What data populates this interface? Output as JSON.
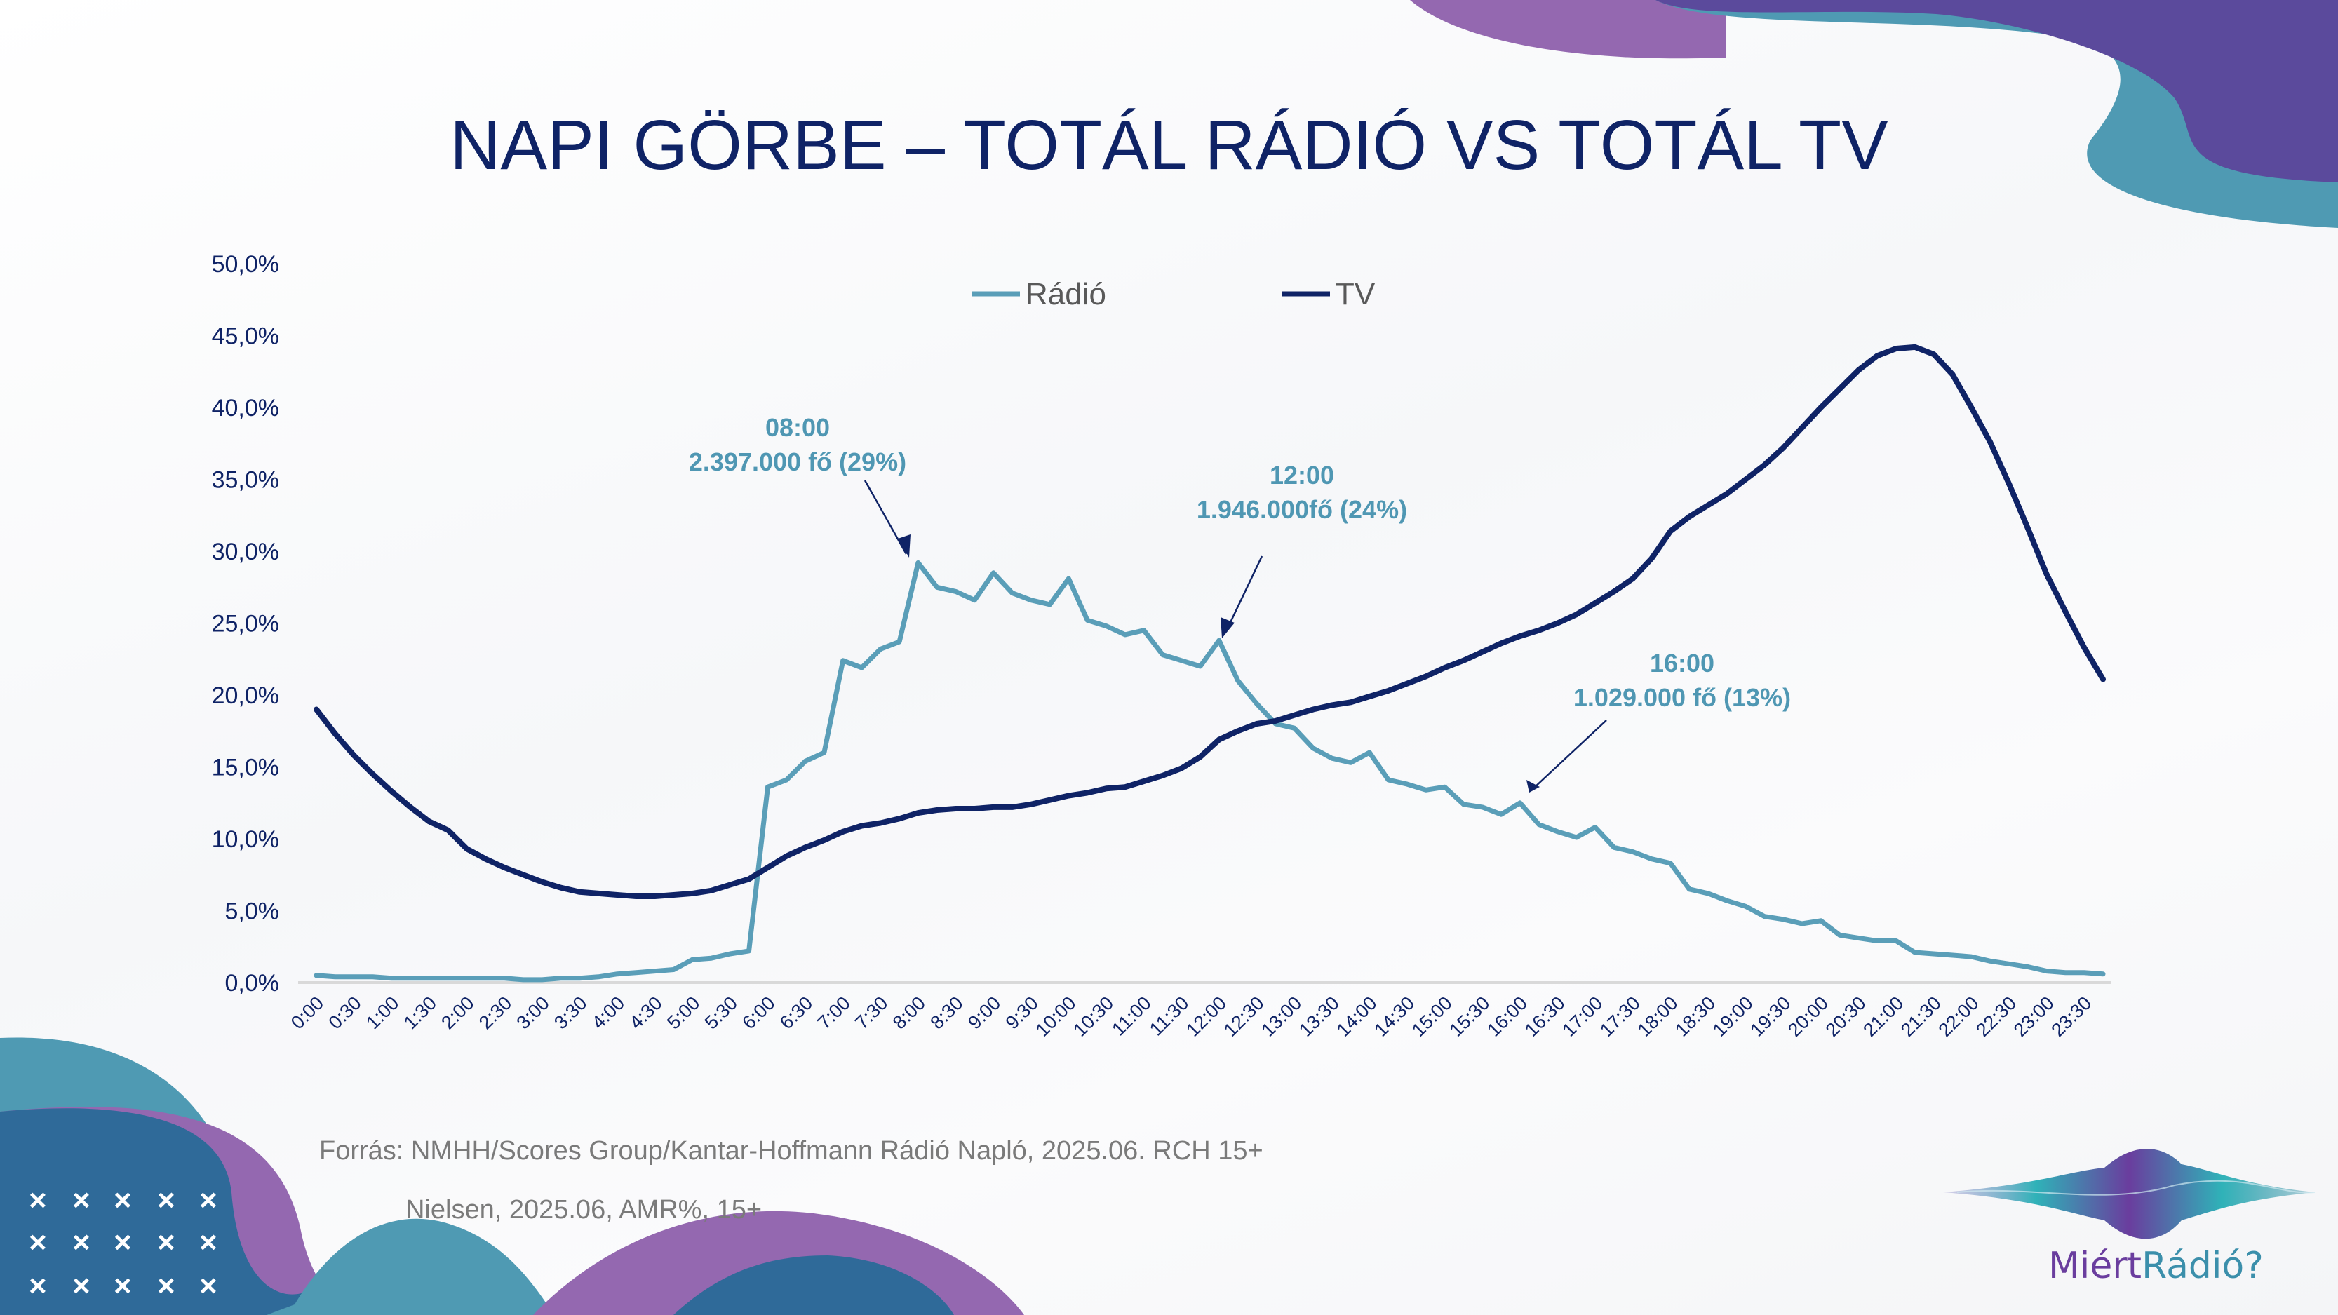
{
  "slide": {
    "title": "NAPI GÖRBE – TOTÁL RÁDIÓ VS TOTÁL TV",
    "source_line1": "Forrás: NMHH/Scores Group/Kantar-Hoffmann Rádió Napló, 2025.06. RCH 15+",
    "source_line2": "Nielsen, 2025.06, AMR%, 15+",
    "logo_part1": "Miért",
    "logo_part2": "Rádió?",
    "decor_mark": "×"
  },
  "colors": {
    "radio": "#5a9eb8",
    "tv": "#0f2366",
    "annotation": "#4f97b3",
    "purple": "#9468b0",
    "teal": "#4f9ab3",
    "blue": "#2f6a99"
  },
  "chart_data": {
    "type": "line",
    "title": "NAPI GÖRBE – TOTÁL RÁDIÓ VS TOTÁL TV",
    "xlabel": "",
    "ylabel": "",
    "ylim": [
      0,
      50
    ],
    "yticks": [
      "0,0%",
      "5,0%",
      "10,0%",
      "15,0%",
      "20,0%",
      "25,0%",
      "30,0%",
      "35,0%",
      "40,0%",
      "45,0%",
      "50,0%"
    ],
    "legend_position": "top-center",
    "x_interval_minutes": 15,
    "xtick_labels": [
      "0:00",
      "0:30",
      "1:00",
      "1:30",
      "2:00",
      "2:30",
      "3:00",
      "3:30",
      "4:00",
      "4:30",
      "5:00",
      "5:30",
      "6:00",
      "6:30",
      "7:00",
      "7:30",
      "8:00",
      "8:30",
      "9:00",
      "9:30",
      "10:00",
      "10:30",
      "11:00",
      "11:30",
      "12:00",
      "12:30",
      "13:00",
      "13:30",
      "14:00",
      "14:30",
      "15:00",
      "15:30",
      "16:00",
      "16:30",
      "17:00",
      "17:30",
      "18:00",
      "18:30",
      "19:00",
      "19:30",
      "20:00",
      "20:30",
      "21:00",
      "21:30",
      "22:00",
      "22:30",
      "23:00",
      "23:30"
    ],
    "series": [
      {
        "name": "Rádió",
        "values": [
          0.5,
          0.4,
          0.4,
          0.4,
          0.3,
          0.3,
          0.3,
          0.3,
          0.3,
          0.3,
          0.3,
          0.2,
          0.2,
          0.3,
          0.3,
          0.4,
          0.6,
          0.7,
          0.8,
          0.9,
          1.6,
          1.7,
          2.0,
          2.2,
          13.6,
          14.1,
          15.4,
          16.0,
          22.4,
          21.9,
          23.2,
          23.7,
          29.2,
          27.5,
          27.2,
          26.6,
          28.5,
          27.1,
          26.6,
          26.3,
          28.1,
          25.2,
          24.8,
          24.2,
          24.5,
          22.8,
          22.4,
          22.0,
          23.8,
          21.0,
          19.4,
          18.0,
          17.7,
          16.3,
          15.6,
          15.3,
          16.0,
          14.1,
          13.8,
          13.4,
          13.6,
          12.4,
          12.2,
          11.7,
          12.5,
          11.0,
          10.5,
          10.1,
          10.8,
          9.4,
          9.1,
          8.6,
          8.3,
          6.5,
          6.2,
          5.7,
          5.3,
          4.6,
          4.4,
          4.1,
          4.3,
          3.3,
          3.1,
          2.9,
          2.9,
          2.1,
          2.0,
          1.9,
          1.8,
          1.5,
          1.3,
          1.1,
          0.8,
          0.7,
          0.7,
          0.6
        ]
      },
      {
        "name": "TV",
        "values": [
          19.0,
          17.3,
          15.8,
          14.5,
          13.3,
          12.2,
          11.2,
          10.6,
          9.3,
          8.6,
          8.0,
          7.5,
          7.0,
          6.6,
          6.3,
          6.2,
          6.1,
          6.0,
          6.0,
          6.1,
          6.2,
          6.4,
          6.8,
          7.2,
          8.0,
          8.8,
          9.4,
          9.9,
          10.5,
          10.9,
          11.1,
          11.4,
          11.8,
          12.0,
          12.1,
          12.1,
          12.2,
          12.2,
          12.4,
          12.7,
          13.0,
          13.2,
          13.5,
          13.6,
          14.0,
          14.4,
          14.9,
          15.7,
          16.9,
          17.5,
          18.0,
          18.2,
          18.6,
          19.0,
          19.3,
          19.5,
          19.9,
          20.3,
          20.8,
          21.3,
          21.9,
          22.4,
          23.0,
          23.6,
          24.1,
          24.5,
          25.0,
          25.6,
          26.4,
          27.2,
          28.1,
          29.5,
          31.4,
          32.4,
          33.2,
          34.0,
          35.0,
          36.0,
          37.2,
          38.6,
          40.0,
          41.3,
          42.6,
          43.6,
          44.1,
          44.2,
          43.7,
          42.3,
          40.0,
          37.6,
          34.7,
          31.6,
          28.4,
          25.8,
          23.3,
          21.1
        ]
      }
    ],
    "annotations": [
      {
        "time": "08:00",
        "text": "2.397.000 fő (29%)",
        "index": 32
      },
      {
        "time": "12:00",
        "text": "1.946.000fő (24%)",
        "index": 48
      },
      {
        "time": "16:00",
        "text": "1.029.000 fő (13%)",
        "index": 64
      }
    ]
  }
}
